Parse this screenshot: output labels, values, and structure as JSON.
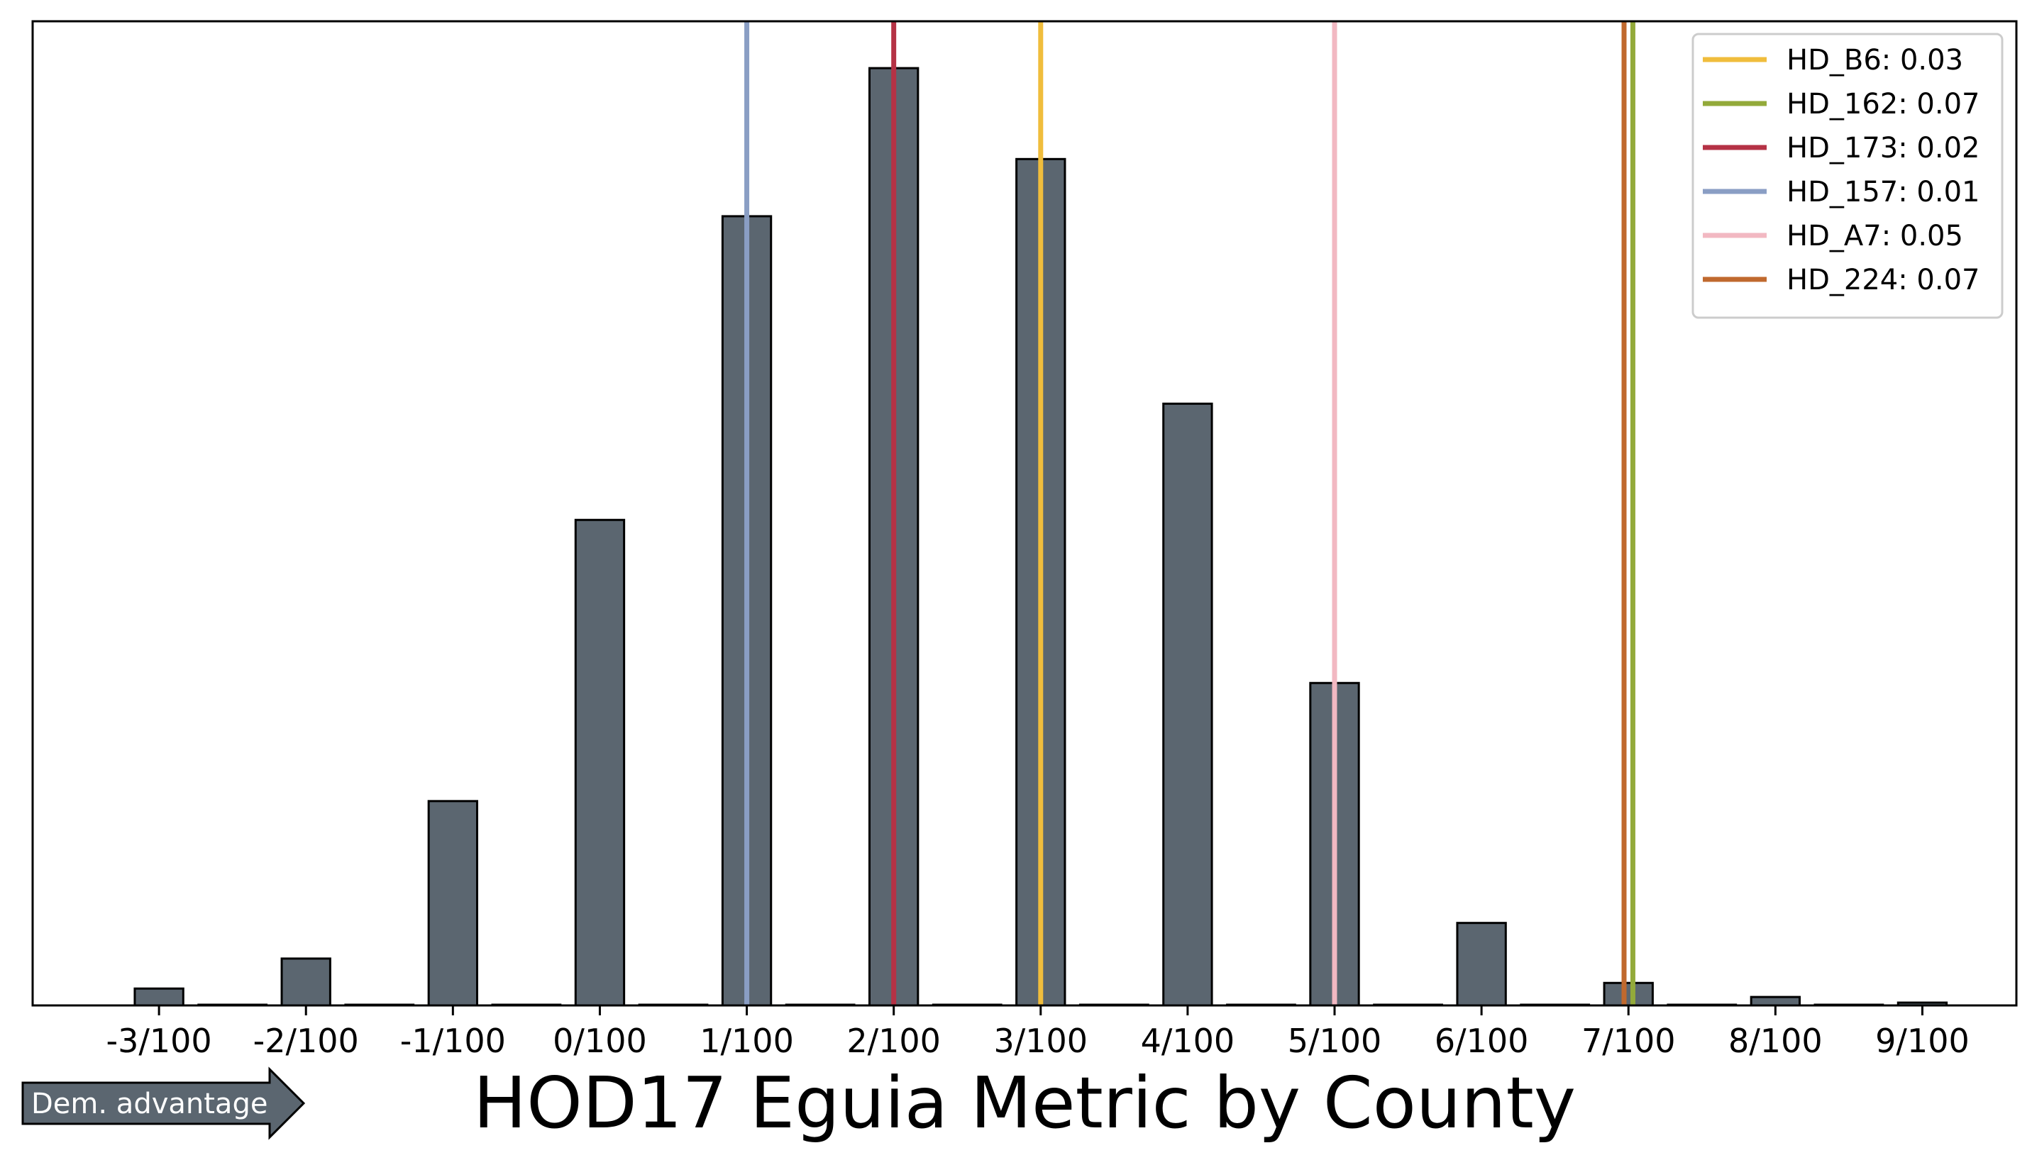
{
  "chart_data": {
    "type": "bar",
    "title": "HOD17 Eguia Metric by County",
    "xlabel": "",
    "ylabel": "",
    "x": [
      -0.03,
      -0.02,
      -0.01,
      0.0,
      0.01,
      0.02,
      0.03,
      0.04,
      0.05,
      0.06,
      0.07,
      0.08,
      0.09
    ],
    "tick_labels": [
      "-3/100",
      "-2/100",
      "-1/100",
      "0/100",
      "1/100",
      "2/100",
      "3/100",
      "4/100",
      "5/100",
      "6/100",
      "7/100",
      "8/100",
      "9/100"
    ],
    "values": [
      1.8,
      5.0,
      21.8,
      51.8,
      84.2,
      100.0,
      90.3,
      64.2,
      34.4,
      8.8,
      2.4,
      0.9,
      0.3
    ],
    "xlim": [
      -0.0386,
      0.0964
    ],
    "ylim": [
      0,
      105
    ],
    "grid": false,
    "legend_position": "top-right",
    "bar_color": "#5b6670",
    "reference_lines": [
      {
        "label": "HD_B6: 0.03",
        "x": 0.03,
        "color": "#f0bd3c"
      },
      {
        "label": "HD_162: 0.07",
        "x": 0.0703,
        "color": "#93aa3a"
      },
      {
        "label": "HD_173: 0.02",
        "x": 0.02,
        "color": "#b53245"
      },
      {
        "label": "HD_157: 0.01",
        "x": 0.01,
        "color": "#8a9ec4"
      },
      {
        "label": "HD_A7: 0.05",
        "x": 0.05,
        "color": "#f2b8c2"
      },
      {
        "label": "HD_224: 0.07",
        "x": 0.0697,
        "color": "#c0692e"
      }
    ]
  },
  "annotation": {
    "arrow_label": "Dem. advantage",
    "arrow_color": "#5b6670"
  }
}
